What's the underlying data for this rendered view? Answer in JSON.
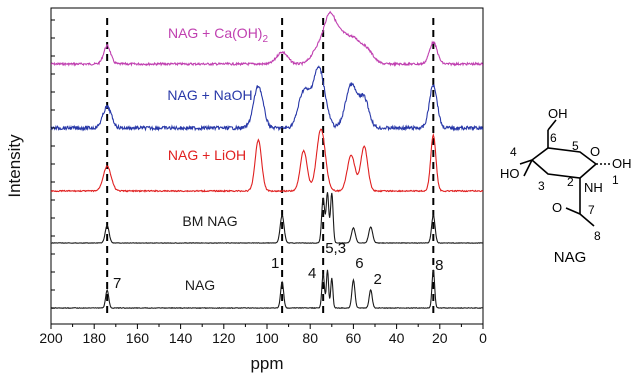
{
  "chart_data": {
    "type": "line",
    "xlabel": "ppm",
    "ylabel": "Intensity",
    "xlim": [
      200,
      0
    ],
    "x_reversed": true,
    "x_ticks": [
      200,
      180,
      160,
      140,
      120,
      100,
      80,
      60,
      40,
      20,
      0
    ],
    "y_ticks_shown": false,
    "reference_lines_ppm": [
      174,
      93,
      74,
      23
    ],
    "series": [
      {
        "name": "NAG + Ca(OH)2",
        "label_main": "NAG + Ca(OH)",
        "label_sub": "2",
        "color": "#c040b0",
        "peaks": [
          {
            "ppm": 174,
            "height": 0.38,
            "width": 1.6
          },
          {
            "ppm": 93,
            "height": 0.25,
            "width": 2.5
          },
          {
            "ppm": 76,
            "height": 0.35,
            "width": 3
          },
          {
            "ppm": 71,
            "height": 0.85,
            "width": 2.5
          },
          {
            "ppm": 66,
            "height": 0.55,
            "width": 3
          },
          {
            "ppm": 60,
            "height": 0.45,
            "width": 3
          },
          {
            "ppm": 54,
            "height": 0.3,
            "width": 3
          },
          {
            "ppm": 23,
            "height": 0.45,
            "width": 1.8
          }
        ]
      },
      {
        "name": "NAG + NaOH",
        "label_main": "NAG + NaOH",
        "label_sub": "",
        "color": "#2838a8",
        "peaks": [
          {
            "ppm": 174,
            "height": 0.35,
            "width": 2.0
          },
          {
            "ppm": 104,
            "height": 0.7,
            "width": 2.2
          },
          {
            "ppm": 83,
            "height": 0.6,
            "width": 2.5
          },
          {
            "ppm": 76,
            "height": 1.0,
            "width": 2.8
          },
          {
            "ppm": 61,
            "height": 0.72,
            "width": 2.6
          },
          {
            "ppm": 55,
            "height": 0.48,
            "width": 2.2
          },
          {
            "ppm": 23,
            "height": 0.72,
            "width": 1.8
          }
        ]
      },
      {
        "name": "NAG + LiOH",
        "label_main": "NAG + LiOH",
        "label_sub": "",
        "color": "#e02020",
        "peaks": [
          {
            "ppm": 174,
            "height": 0.4,
            "width": 1.8
          },
          {
            "ppm": 104,
            "height": 0.82,
            "width": 1.5
          },
          {
            "ppm": 83,
            "height": 0.65,
            "width": 1.6
          },
          {
            "ppm": 75,
            "height": 1.0,
            "width": 2.0
          },
          {
            "ppm": 61,
            "height": 0.58,
            "width": 1.8
          },
          {
            "ppm": 55,
            "height": 0.72,
            "width": 1.6
          },
          {
            "ppm": 23,
            "height": 0.9,
            "width": 1.2
          }
        ]
      },
      {
        "name": "BM NAG",
        "label_main": "BM NAG",
        "label_sub": "",
        "color": "#1a1a1a",
        "peaks": [
          {
            "ppm": 174,
            "height": 0.35,
            "width": 0.9
          },
          {
            "ppm": 93,
            "height": 0.55,
            "width": 0.9
          },
          {
            "ppm": 74,
            "height": 0.9,
            "width": 0.7
          },
          {
            "ppm": 72,
            "height": 1.0,
            "width": 0.6
          },
          {
            "ppm": 70,
            "height": 1.0,
            "width": 0.6
          },
          {
            "ppm": 60,
            "height": 0.3,
            "width": 0.9
          },
          {
            "ppm": 52,
            "height": 0.32,
            "width": 0.9
          },
          {
            "ppm": 23,
            "height": 0.55,
            "width": 0.8
          }
        ]
      },
      {
        "name": "NAG",
        "label_main": "NAG",
        "label_sub": "",
        "color": "#1a1a1a",
        "peaks": [
          {
            "ppm": 174,
            "height": 0.45,
            "width": 0.7
          },
          {
            "ppm": 93,
            "height": 0.65,
            "width": 0.7
          },
          {
            "ppm": 74,
            "height": 0.85,
            "width": 0.6
          },
          {
            "ppm": 72,
            "height": 0.95,
            "width": 0.5
          },
          {
            "ppm": 70,
            "height": 0.75,
            "width": 0.5
          },
          {
            "ppm": 60,
            "height": 0.7,
            "width": 0.7
          },
          {
            "ppm": 52,
            "height": 0.45,
            "width": 0.7
          },
          {
            "ppm": 23,
            "height": 0.95,
            "width": 0.6
          }
        ]
      }
    ],
    "peak_assignments": [
      {
        "label": "7",
        "ppm": 174
      },
      {
        "label": "1",
        "ppm": 93
      },
      {
        "label": "4",
        "ppm": 74
      },
      {
        "label": "5,3",
        "ppm": 71
      },
      {
        "label": "6",
        "ppm": 60
      },
      {
        "label": "2",
        "ppm": 52
      },
      {
        "label": "8",
        "ppm": 23
      }
    ]
  },
  "structure": {
    "caption": "NAG",
    "atoms": {
      "oh_top": "OH",
      "c6": "6",
      "c5": "5",
      "c4": "4",
      "o_ring": "O",
      "oh_right": "OH",
      "ho_left": "HO",
      "c3": "3",
      "c2": "2",
      "nh": "NH",
      "c1": "1",
      "c7": "7",
      "c8": "8",
      "o_carbonyl": "O"
    }
  }
}
